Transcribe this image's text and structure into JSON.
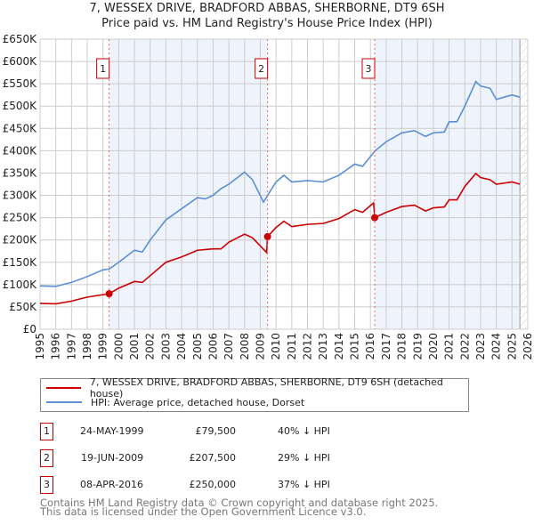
{
  "chart_data": {
    "type": "line",
    "title": "7, WESSEX DRIVE, BRADFORD ABBAS, SHERBORNE, DT9 6SH",
    "subtitle": "Price paid vs. HM Land Registry's House Price Index (HPI)",
    "xlim": [
      1995,
      2026
    ],
    "ylim": [
      0,
      650000
    ],
    "x_ticks": [
      "1995",
      "1996",
      "1997",
      "1998",
      "1999",
      "2000",
      "2001",
      "2002",
      "2003",
      "2004",
      "2005",
      "2006",
      "2007",
      "2008",
      "2009",
      "2010",
      "2011",
      "2012",
      "2013",
      "2014",
      "2015",
      "2016",
      "2017",
      "2018",
      "2019",
      "2020",
      "2021",
      "2022",
      "2023",
      "2024",
      "2025",
      "2026"
    ],
    "y_ticks": [
      {
        "v": 0,
        "label": "£0"
      },
      {
        "v": 50000,
        "label": "£50K"
      },
      {
        "v": 100000,
        "label": "£100K"
      },
      {
        "v": 150000,
        "label": "£150K"
      },
      {
        "v": 200000,
        "label": "£200K"
      },
      {
        "v": 250000,
        "label": "£250K"
      },
      {
        "v": 300000,
        "label": "£300K"
      },
      {
        "v": 350000,
        "label": "£350K"
      },
      {
        "v": 400000,
        "label": "£400K"
      },
      {
        "v": 450000,
        "label": "£450K"
      },
      {
        "v": 500000,
        "label": "£500K"
      },
      {
        "v": 550000,
        "label": "£550K"
      },
      {
        "v": 600000,
        "label": "£600K"
      },
      {
        "v": 650000,
        "label": "£650K"
      }
    ],
    "grid": true,
    "series": [
      {
        "name": "7, WESSEX DRIVE, BRADFORD ABBAS, SHERBORNE, DT9 6SH (detached house)",
        "color": "#cc0000",
        "points": [
          [
            1995,
            58000
          ],
          [
            1996,
            57000
          ],
          [
            1997,
            63000
          ],
          [
            1998,
            72000
          ],
          [
            1999.39,
            79500
          ],
          [
            2000,
            92000
          ],
          [
            2001,
            107000
          ],
          [
            2001.5,
            105000
          ],
          [
            2002,
            120000
          ],
          [
            2003,
            150000
          ],
          [
            2004,
            162000
          ],
          [
            2005,
            177000
          ],
          [
            2006,
            180000
          ],
          [
            2006.5,
            180000
          ],
          [
            2007,
            195000
          ],
          [
            2008,
            213000
          ],
          [
            2008.5,
            205000
          ],
          [
            2009.4,
            172000
          ],
          [
            2009.46,
            207500
          ],
          [
            2010,
            228000
          ],
          [
            2010.5,
            242000
          ],
          [
            2011,
            230000
          ],
          [
            2012,
            235000
          ],
          [
            2013,
            237000
          ],
          [
            2014,
            248000
          ],
          [
            2015,
            268000
          ],
          [
            2015.5,
            262000
          ],
          [
            2016.2,
            283000
          ],
          [
            2016.27,
            250000
          ],
          [
            2017,
            262000
          ],
          [
            2018,
            275000
          ],
          [
            2018.8,
            278000
          ],
          [
            2019.5,
            265000
          ],
          [
            2020,
            272000
          ],
          [
            2020.7,
            274000
          ],
          [
            2021,
            290000
          ],
          [
            2021.5,
            290000
          ],
          [
            2022,
            320000
          ],
          [
            2022.7,
            349000
          ],
          [
            2023,
            340000
          ],
          [
            2023.6,
            335000
          ],
          [
            2024,
            325000
          ],
          [
            2025,
            330000
          ],
          [
            2025.5,
            325000
          ]
        ]
      },
      {
        "name": "HPI: Average price, detached house, Dorset",
        "color": "#5b8fd4",
        "points": [
          [
            1995,
            97000
          ],
          [
            1996,
            96000
          ],
          [
            1997,
            105000
          ],
          [
            1998,
            118000
          ],
          [
            1999,
            133000
          ],
          [
            1999.4,
            135000
          ],
          [
            2000,
            150000
          ],
          [
            2001,
            177000
          ],
          [
            2001.5,
            173000
          ],
          [
            2002,
            200000
          ],
          [
            2003,
            245000
          ],
          [
            2004,
            270000
          ],
          [
            2005,
            295000
          ],
          [
            2005.5,
            292000
          ],
          [
            2006,
            300000
          ],
          [
            2006.5,
            315000
          ],
          [
            2007,
            325000
          ],
          [
            2008,
            352000
          ],
          [
            2008.5,
            335000
          ],
          [
            2009.2,
            285000
          ],
          [
            2010,
            330000
          ],
          [
            2010.5,
            345000
          ],
          [
            2011,
            330000
          ],
          [
            2012,
            333000
          ],
          [
            2013,
            330000
          ],
          [
            2014,
            345000
          ],
          [
            2015,
            370000
          ],
          [
            2015.5,
            365000
          ],
          [
            2016.3,
            400000
          ],
          [
            2017,
            420000
          ],
          [
            2018,
            440000
          ],
          [
            2018.8,
            445000
          ],
          [
            2019.5,
            432000
          ],
          [
            2020,
            440000
          ],
          [
            2020.7,
            442000
          ],
          [
            2021,
            465000
          ],
          [
            2021.5,
            465000
          ],
          [
            2022,
            500000
          ],
          [
            2022.7,
            555000
          ],
          [
            2023,
            545000
          ],
          [
            2023.6,
            540000
          ],
          [
            2024,
            515000
          ],
          [
            2024.5,
            520000
          ],
          [
            2025,
            525000
          ],
          [
            2025.5,
            520000
          ]
        ]
      }
    ],
    "sales": [
      {
        "label": "1",
        "x": 1999.39,
        "y": 79500
      },
      {
        "label": "2",
        "x": 2009.46,
        "y": 207500
      },
      {
        "label": "3",
        "x": 2016.27,
        "y": 250000
      }
    ],
    "shaded_ranges": [
      [
        1999.39,
        2009.46
      ],
      [
        2016.27,
        2025.5
      ]
    ],
    "forecast_hatch_from": 2025.5,
    "legend": "bottom"
  },
  "legend": {
    "red_label": "7, WESSEX DRIVE, BRADFORD ABBAS, SHERBORNE, DT9 6SH (detached house)",
    "blue_label": "HPI: Average price, detached house, Dorset"
  },
  "transactions": [
    {
      "n": "1",
      "date": "24-MAY-1999",
      "price": "£79,500",
      "vs": "40% ↓ HPI"
    },
    {
      "n": "2",
      "date": "19-JUN-2009",
      "price": "£207,500",
      "vs": "29% ↓ HPI"
    },
    {
      "n": "3",
      "date": "08-APR-2016",
      "price": "£250,000",
      "vs": "37% ↓ HPI"
    }
  ],
  "footer": {
    "line1": "Contains HM Land Registry data © Crown copyright and database right 2025.",
    "line2": "This data is licensed under the Open Government Licence v3.0."
  }
}
